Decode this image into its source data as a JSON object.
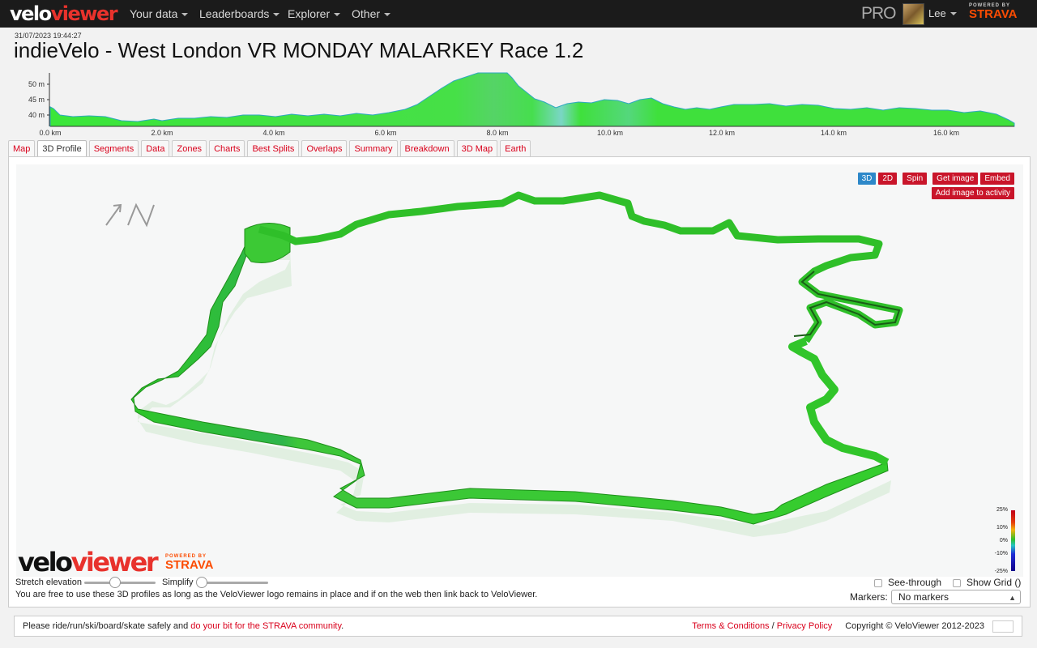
{
  "brand": {
    "logo_part1": "velo",
    "logo_part2": "viewer"
  },
  "nav": {
    "items": [
      {
        "label": "Your data",
        "key": "your-data"
      },
      {
        "label": "Leaderboards",
        "key": "leaderboards"
      },
      {
        "label": "Explorer",
        "key": "explorer"
      },
      {
        "label": "Other",
        "key": "other"
      }
    ],
    "pro_label": "PRO",
    "user_name": "Lee",
    "strava_powered": "POWERED BY",
    "strava_label": "STRAVA"
  },
  "activity": {
    "timestamp": "31/07/2023 19:44:27",
    "title": "indieVelo - West London VR MONDAY MALARKEY Race 1.2"
  },
  "elevation": {
    "y_ticks": [
      "50 m",
      "45 m",
      "40 m"
    ],
    "x_ticks": [
      "0.0 km",
      "2.0 km",
      "4.0 km",
      "6.0 km",
      "8.0 km",
      "10.0 km",
      "12.0 km",
      "14.0 km",
      "16.0 km"
    ],
    "fill_color": "#3fe03c"
  },
  "tabs": [
    "Map",
    "3D Profile",
    "Segments",
    "Data",
    "Zones",
    "Charts",
    "Best Splits",
    "Overlaps",
    "Summary",
    "Breakdown",
    "3D Map",
    "Earth"
  ],
  "active_tab": "3D Profile",
  "viewer": {
    "btn_3d": "3D",
    "btn_2d": "2D",
    "btn_spin": "Spin",
    "btn_get_image": "Get image",
    "btn_embed": "Embed",
    "btn_add_image": "Add image to activity",
    "gradient_scale": [
      "25%",
      "10%",
      "0%",
      "-10%",
      "-25%"
    ],
    "route_color": "#39d42f"
  },
  "controls": {
    "stretch_label": "Stretch elevation",
    "simplify_label": "Simplify",
    "see_through_label": "See-through",
    "show_grid_label": "Show Grid ()",
    "markers_label": "Markers:",
    "markers_value": "No markers",
    "usage_text": "You are free to use these 3D profiles as long as the VeloViewer logo remains in place and if on the web then link back to VeloViewer."
  },
  "footer": {
    "safety_text": "Please ride/run/ski/board/skate safely and ",
    "safety_link": "do your bit for the STRAVA community",
    "safety_end": ".",
    "terms": "Terms & Conditions",
    "separator": " / ",
    "privacy": "Privacy Policy",
    "copyright": "Copyright © VeloViewer 2012-2023"
  }
}
